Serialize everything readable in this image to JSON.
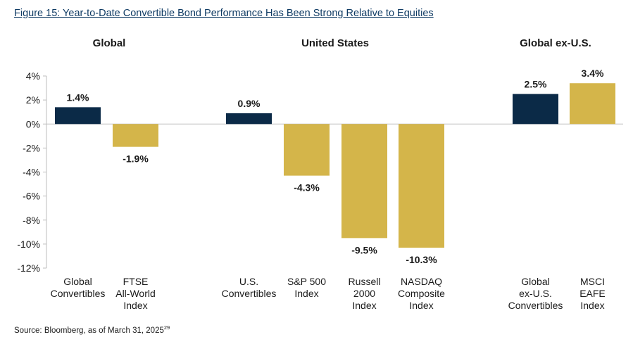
{
  "title": "Figure 15: Year-to-Date Convertible Bond Performance Has Been Strong Relative to Equities",
  "source": {
    "text": "Source: Bloomberg, as of March 31, 2025",
    "footnote": "29"
  },
  "colors": {
    "convertibles": "#0b2a47",
    "equities": "#d4b54a",
    "text": "#1a1a1a",
    "axis": "#bdbdbd"
  },
  "chart_data": {
    "type": "bar",
    "ylim": [
      -12,
      4
    ],
    "yticks": [
      4,
      2,
      0,
      -2,
      -4,
      -6,
      -8,
      -10,
      -12
    ],
    "ytick_labels": [
      "4%",
      "2%",
      "0%",
      "-2%",
      "-4%",
      "-6%",
      "-8%",
      "-10%",
      "-12%"
    ],
    "groups": [
      {
        "name": "Global",
        "bars": [
          {
            "label": [
              "Global",
              "Convertibles"
            ],
            "value": 1.4,
            "value_label": "1.4%",
            "kind": "convertibles"
          },
          {
            "label": [
              "FTSE",
              "All-World",
              "Index"
            ],
            "value": -1.9,
            "value_label": "-1.9%",
            "kind": "equities"
          }
        ]
      },
      {
        "name": "United States",
        "bars": [
          {
            "label": [
              "U.S.",
              "Convertibles"
            ],
            "value": 0.9,
            "value_label": "0.9%",
            "kind": "convertibles"
          },
          {
            "label": [
              "S&P 500",
              "Index"
            ],
            "value": -4.3,
            "value_label": "-4.3%",
            "kind": "equities"
          },
          {
            "label": [
              "Russell",
              "2000",
              "Index"
            ],
            "value": -9.5,
            "value_label": "-9.5%",
            "kind": "equities"
          },
          {
            "label": [
              "NASDAQ",
              "Composite",
              "Index"
            ],
            "value": -10.3,
            "value_label": "-10.3%",
            "kind": "equities"
          }
        ]
      },
      {
        "name": "Global ex-U.S.",
        "bars": [
          {
            "label": [
              "Global",
              "ex-U.S.",
              "Convertibles"
            ],
            "value": 2.5,
            "value_label": "2.5%",
            "kind": "convertibles"
          },
          {
            "label": [
              "MSCI",
              "EAFE",
              "Index"
            ],
            "value": 3.4,
            "value_label": "3.4%",
            "kind": "equities"
          }
        ]
      }
    ]
  }
}
